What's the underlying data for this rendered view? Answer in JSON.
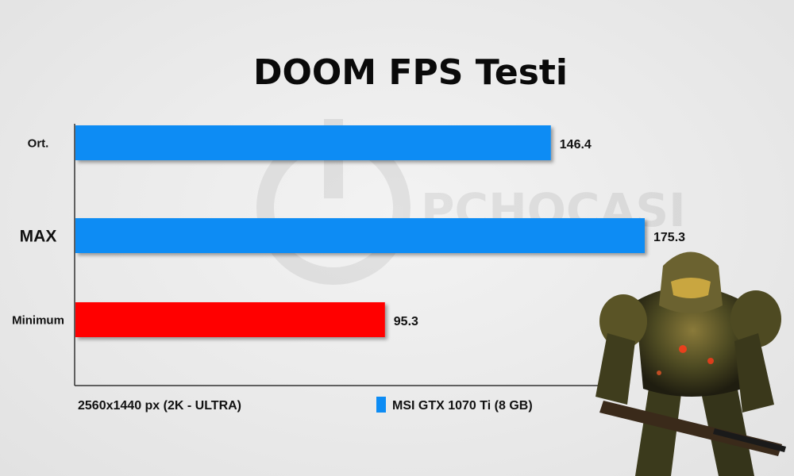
{
  "chart_data": {
    "type": "bar",
    "orientation": "horizontal",
    "title": "DOOM FPS Testi",
    "categories": [
      "Ort.",
      "MAX",
      "Minimum"
    ],
    "values": [
      146.4,
      175.3,
      95.3
    ],
    "value_labels": [
      "146.4",
      "175.3",
      "95.3"
    ],
    "bar_colors": [
      "#0d8cf4",
      "#0d8cf4",
      "#ff0000"
    ],
    "xlim": [
      0,
      190
    ],
    "grid": false,
    "xlabel": "2560x1440 px (2K - ULTRA)",
    "legend": {
      "placement": "bottom",
      "entries": [
        {
          "name": "MSI GTX 1070 Ti (8 GB)",
          "color": "#0d8cf4"
        }
      ]
    }
  },
  "watermark": {
    "text": "PCHOCASI"
  },
  "mascot": {
    "icon": "doom-slayer-figure"
  }
}
